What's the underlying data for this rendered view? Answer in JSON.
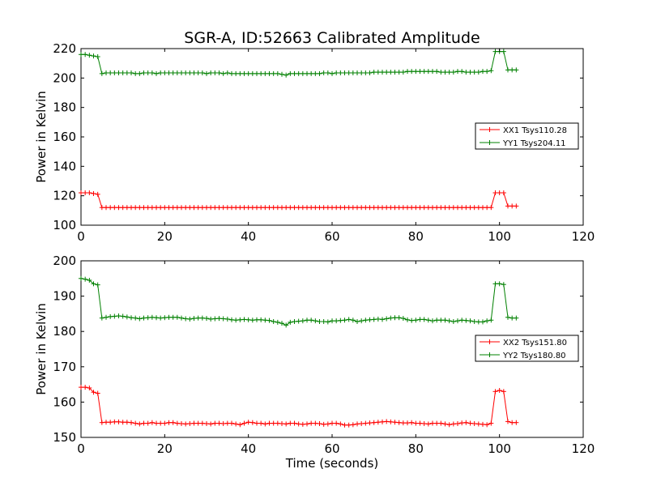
{
  "chart_data": [
    {
      "type": "line",
      "title": "SGR-A, ID:52663 Calibrated Amplitude",
      "xlabel": "",
      "ylabel": "Power in Kelvin",
      "xlim": [
        0,
        120
      ],
      "ylim": [
        100,
        220
      ],
      "x_ticks": [
        "0",
        "20",
        "40",
        "60",
        "80",
        "100",
        "120"
      ],
      "y_ticks": [
        "100",
        "120",
        "140",
        "160",
        "180",
        "200",
        "220"
      ],
      "legend_position": "center-right",
      "series": [
        {
          "name": "XX1 Tsys110.28",
          "color": "#ff0000",
          "x": [
            0,
            1,
            2,
            3,
            4,
            5,
            6,
            7,
            8,
            9,
            10,
            11,
            12,
            13,
            14,
            15,
            16,
            17,
            18,
            19,
            20,
            21,
            22,
            23,
            24,
            25,
            26,
            27,
            28,
            29,
            30,
            31,
            32,
            33,
            34,
            35,
            36,
            37,
            38,
            39,
            40,
            41,
            42,
            43,
            44,
            45,
            46,
            47,
            48,
            49,
            50,
            51,
            52,
            53,
            54,
            55,
            56,
            57,
            58,
            59,
            60,
            61,
            62,
            63,
            64,
            65,
            66,
            67,
            68,
            69,
            70,
            71,
            72,
            73,
            74,
            75,
            76,
            77,
            78,
            79,
            80,
            81,
            82,
            83,
            84,
            85,
            86,
            87,
            88,
            89,
            90,
            91,
            92,
            93,
            94,
            95,
            96,
            97,
            98,
            99,
            100,
            101,
            102,
            103,
            104
          ],
          "values": [
            122,
            122,
            122,
            121.5,
            121,
            112,
            112,
            112,
            112,
            112,
            112,
            112,
            112,
            112,
            112,
            112,
            112,
            112,
            112,
            112,
            112,
            112,
            112,
            112,
            112,
            112,
            112,
            112,
            112,
            112,
            112,
            112,
            112,
            112,
            112,
            112,
            112,
            112,
            112,
            112,
            112,
            112,
            112,
            112,
            112,
            112,
            112,
            112,
            112,
            112,
            112,
            112,
            112,
            112,
            112,
            112,
            112,
            112,
            112,
            112,
            112,
            112,
            112,
            112,
            112,
            112,
            112,
            112,
            112,
            112,
            112,
            112,
            112,
            112,
            112,
            112,
            112,
            112,
            112,
            112,
            112,
            112,
            112,
            112,
            112,
            112,
            112,
            112,
            112,
            112,
            112,
            112,
            112,
            112,
            112,
            112,
            112,
            112,
            112,
            122,
            122,
            122,
            113,
            113,
            113
          ]
        },
        {
          "name": "YY1 Tsys204.11",
          "color": "#008000",
          "x": [
            0,
            1,
            2,
            3,
            4,
            5,
            6,
            7,
            8,
            9,
            10,
            11,
            12,
            13,
            14,
            15,
            16,
            17,
            18,
            19,
            20,
            21,
            22,
            23,
            24,
            25,
            26,
            27,
            28,
            29,
            30,
            31,
            32,
            33,
            34,
            35,
            36,
            37,
            38,
            39,
            40,
            41,
            42,
            43,
            44,
            45,
            46,
            47,
            48,
            49,
            50,
            51,
            52,
            53,
            54,
            55,
            56,
            57,
            58,
            59,
            60,
            61,
            62,
            63,
            64,
            65,
            66,
            67,
            68,
            69,
            70,
            71,
            72,
            73,
            74,
            75,
            76,
            77,
            78,
            79,
            80,
            81,
            82,
            83,
            84,
            85,
            86,
            87,
            88,
            89,
            90,
            91,
            92,
            93,
            94,
            95,
            96,
            97,
            98,
            99,
            100,
            101,
            102,
            103,
            104
          ],
          "values": [
            216,
            216,
            215.5,
            215,
            214.5,
            203,
            203.5,
            203.5,
            203.5,
            203.5,
            203.5,
            203.5,
            203.5,
            203,
            203,
            203.5,
            203.5,
            203.5,
            203,
            203.5,
            203.5,
            203.5,
            203.5,
            203.5,
            203.5,
            203.5,
            203.5,
            203.5,
            203.5,
            203.5,
            203,
            203.5,
            203.5,
            203.5,
            203,
            203.5,
            203,
            203,
            203,
            203,
            203,
            203,
            203,
            203,
            203,
            203,
            203,
            203,
            202.5,
            202,
            203,
            203,
            203,
            203,
            203,
            203,
            203,
            203,
            203.5,
            203.5,
            203,
            203.5,
            203.5,
            203.5,
            203.5,
            203.5,
            203.5,
            203.5,
            203.5,
            203.5,
            204,
            204,
            204,
            204,
            204,
            204,
            204,
            204,
            204.5,
            204.5,
            204.5,
            204.5,
            204.5,
            204.5,
            204.5,
            204.5,
            204,
            204,
            204,
            204,
            204.5,
            204.5,
            204,
            204,
            204,
            204,
            204.5,
            204.5,
            205,
            218,
            218,
            218,
            205.5,
            205.5,
            205.5
          ]
        }
      ]
    },
    {
      "type": "line",
      "title": "",
      "xlabel": "Time (seconds)",
      "ylabel": "Power in Kelvin",
      "xlim": [
        0,
        120
      ],
      "ylim": [
        150,
        200
      ],
      "x_ticks": [
        "0",
        "20",
        "40",
        "60",
        "80",
        "100",
        "120"
      ],
      "y_ticks": [
        "150",
        "160",
        "170",
        "180",
        "190",
        "200"
      ],
      "legend_position": "center-right",
      "series": [
        {
          "name": "XX2 Tsys151.80",
          "color": "#ff0000",
          "x": [
            0,
            1,
            2,
            3,
            4,
            5,
            6,
            7,
            8,
            9,
            10,
            11,
            12,
            13,
            14,
            15,
            16,
            17,
            18,
            19,
            20,
            21,
            22,
            23,
            24,
            25,
            26,
            27,
            28,
            29,
            30,
            31,
            32,
            33,
            34,
            35,
            36,
            37,
            38,
            39,
            40,
            41,
            42,
            43,
            44,
            45,
            46,
            47,
            48,
            49,
            50,
            51,
            52,
            53,
            54,
            55,
            56,
            57,
            58,
            59,
            60,
            61,
            62,
            63,
            64,
            65,
            66,
            67,
            68,
            69,
            70,
            71,
            72,
            73,
            74,
            75,
            76,
            77,
            78,
            79,
            80,
            81,
            82,
            83,
            84,
            85,
            86,
            87,
            88,
            89,
            90,
            91,
            92,
            93,
            94,
            95,
            96,
            97,
            98,
            99,
            100,
            101,
            102,
            103,
            104
          ],
          "values": [
            164.2,
            164.2,
            164,
            162.8,
            162.5,
            154.2,
            154.3,
            154.3,
            154.4,
            154.4,
            154.3,
            154.3,
            154.2,
            154,
            153.8,
            154,
            154,
            154.2,
            154,
            154,
            154,
            154.2,
            154.2,
            154,
            153.9,
            153.8,
            153.9,
            154,
            154,
            154,
            153.9,
            153.8,
            154,
            154,
            153.9,
            154,
            154,
            153.8,
            153.6,
            154,
            154.3,
            154.2,
            154,
            154,
            153.8,
            154,
            154,
            154,
            153.9,
            153.8,
            154,
            154,
            153.8,
            153.7,
            153.8,
            154,
            154,
            153.9,
            153.7,
            153.8,
            154,
            154,
            153.8,
            153.5,
            153.5,
            153.6,
            153.8,
            153.9,
            154,
            154.1,
            154.2,
            154.3,
            154.4,
            154.5,
            154.4,
            154.3,
            154.2,
            154.1,
            154.1,
            154.2,
            154,
            154,
            153.9,
            153.8,
            154,
            154,
            154,
            153.8,
            153.6,
            153.8,
            153.9,
            154.1,
            154.2,
            154,
            153.9,
            153.8,
            153.7,
            153.6,
            154,
            163,
            163.3,
            163,
            154.5,
            154.2,
            154.2
          ]
        },
        {
          "name": "YY2 Tsys180.80",
          "color": "#008000",
          "x": [
            0,
            1,
            2,
            3,
            4,
            5,
            6,
            7,
            8,
            9,
            10,
            11,
            12,
            13,
            14,
            15,
            16,
            17,
            18,
            19,
            20,
            21,
            22,
            23,
            24,
            25,
            26,
            27,
            28,
            29,
            30,
            31,
            32,
            33,
            34,
            35,
            36,
            37,
            38,
            39,
            40,
            41,
            42,
            43,
            44,
            45,
            46,
            47,
            48,
            49,
            50,
            51,
            52,
            53,
            54,
            55,
            56,
            57,
            58,
            59,
            60,
            61,
            62,
            63,
            64,
            65,
            66,
            67,
            68,
            69,
            70,
            71,
            72,
            73,
            74,
            75,
            76,
            77,
            78,
            79,
            80,
            81,
            82,
            83,
            84,
            85,
            86,
            87,
            88,
            89,
            90,
            91,
            92,
            93,
            94,
            95,
            96,
            97,
            98,
            99,
            100,
            101,
            102,
            103,
            104
          ],
          "values": [
            195,
            194.8,
            194.5,
            193.5,
            193.2,
            183.8,
            184,
            184.2,
            184.3,
            184.4,
            184.3,
            184.1,
            183.9,
            183.8,
            183.6,
            183.8,
            183.9,
            184,
            183.9,
            183.8,
            183.9,
            184,
            184,
            184,
            183.8,
            183.6,
            183.5,
            183.7,
            183.8,
            183.8,
            183.7,
            183.5,
            183.6,
            183.7,
            183.6,
            183.5,
            183.3,
            183.2,
            183.3,
            183.4,
            183.3,
            183.2,
            183.3,
            183.3,
            183.2,
            183.1,
            182.8,
            182.6,
            182.3,
            181.8,
            182.6,
            182.8,
            182.9,
            183,
            183.2,
            183.2,
            183,
            182.8,
            182.8,
            182.7,
            183,
            183,
            183.1,
            183.2,
            183.4,
            183.2,
            182.8,
            183,
            183.2,
            183.3,
            183.4,
            183.5,
            183.4,
            183.6,
            183.8,
            183.9,
            183.9,
            183.7,
            183.3,
            183.1,
            183.2,
            183.4,
            183.4,
            183.2,
            183,
            183.2,
            183.2,
            183.2,
            183,
            182.8,
            183,
            183.2,
            183.1,
            183,
            182.8,
            182.7,
            182.7,
            183,
            183.2,
            193.5,
            193.5,
            193.3,
            184,
            183.8,
            183.8
          ]
        }
      ]
    }
  ]
}
